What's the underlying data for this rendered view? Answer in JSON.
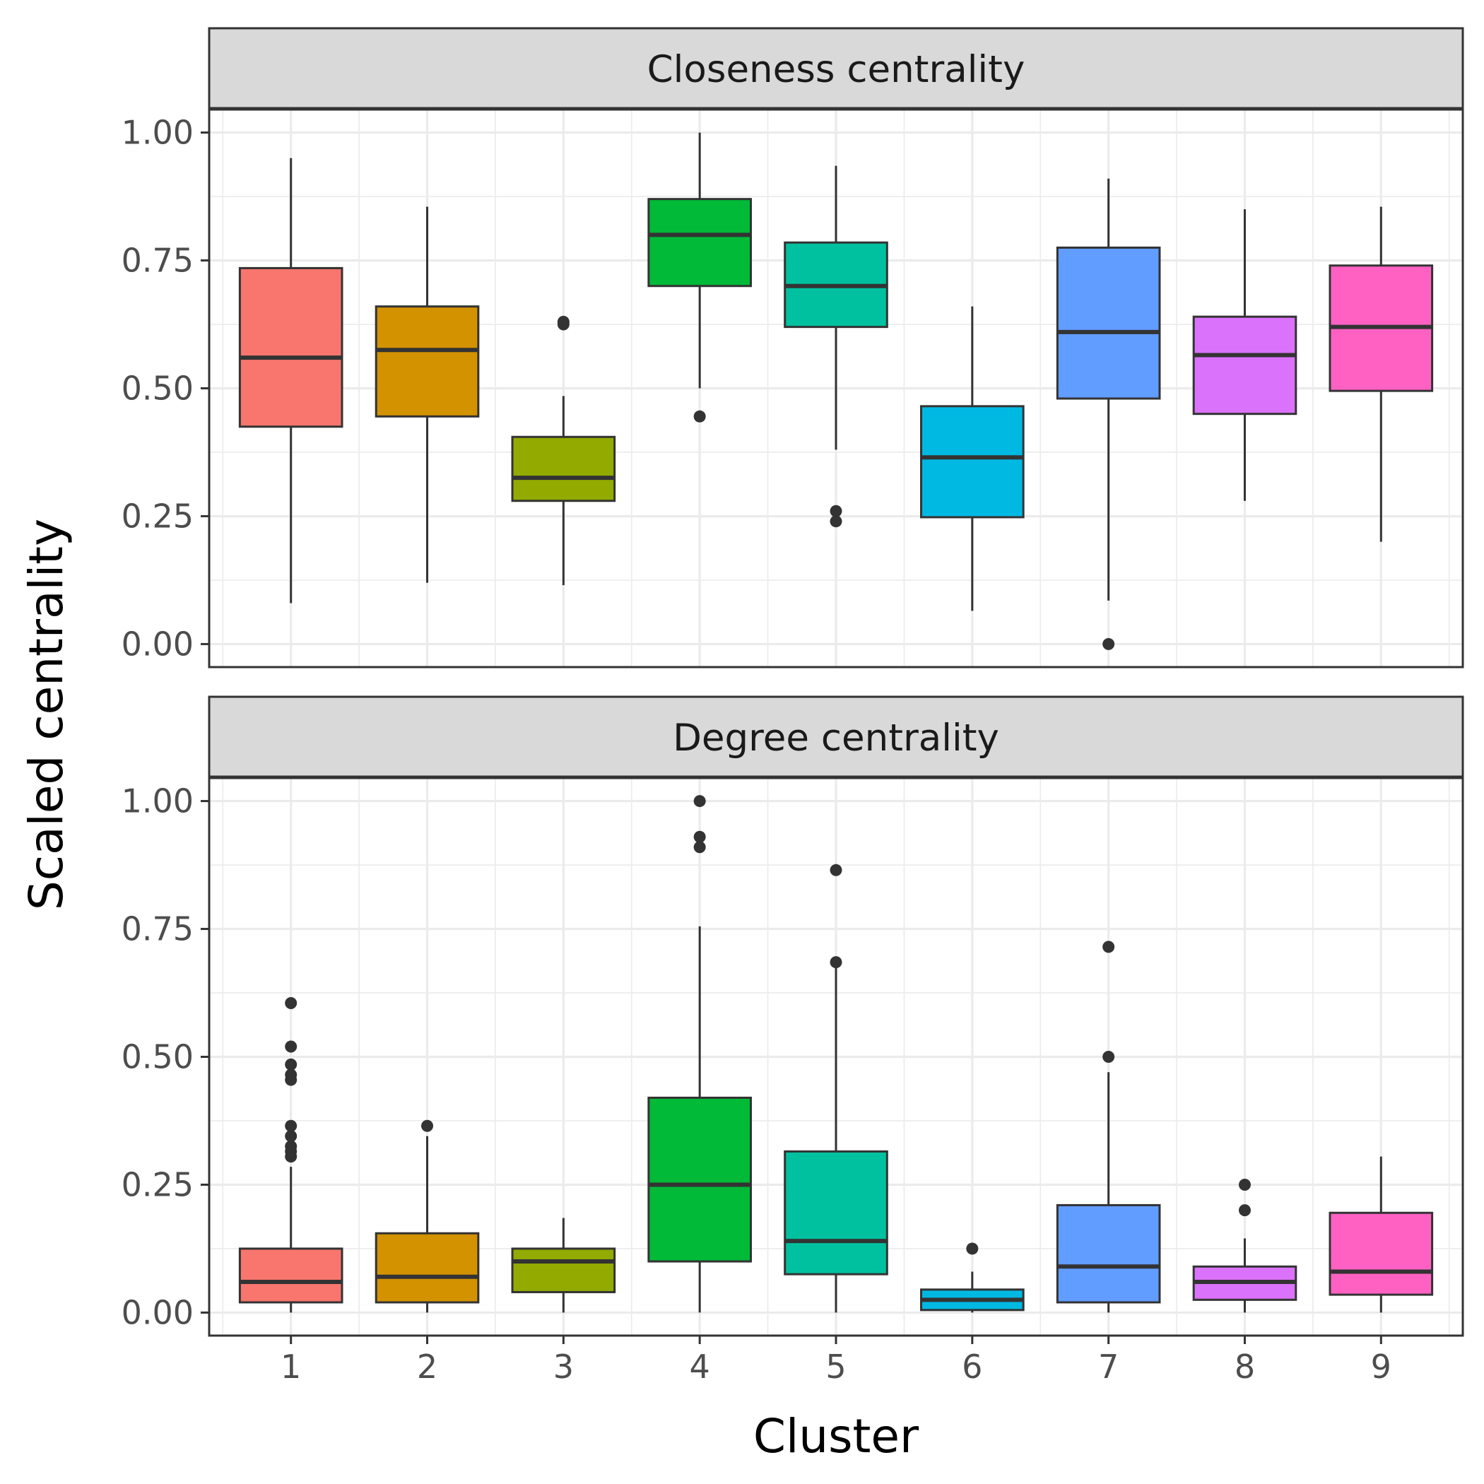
{
  "chart_data": {
    "type": "boxplot",
    "xlabel": "Cluster",
    "ylabel": "Scaled centrality",
    "ylim": [
      -0.045,
      1.045
    ],
    "yticks": [
      "0.00",
      "0.25",
      "0.50",
      "0.75",
      "1.00"
    ],
    "categories": [
      "1",
      "2",
      "3",
      "4",
      "5",
      "6",
      "7",
      "8",
      "9"
    ],
    "colors": [
      "#F8766D",
      "#D39200",
      "#93AA00",
      "#00BA38",
      "#00C19F",
      "#00B9E3",
      "#619CFF",
      "#DB72FB",
      "#FF61C3"
    ],
    "grid": true,
    "facets": [
      {
        "label": "Closeness centrality",
        "boxes": [
          {
            "cluster": "1",
            "whisker_low": 0.08,
            "q1": 0.425,
            "median": 0.56,
            "q3": 0.735,
            "whisker_high": 0.95,
            "outliers": []
          },
          {
            "cluster": "2",
            "whisker_low": 0.12,
            "q1": 0.445,
            "median": 0.575,
            "q3": 0.66,
            "whisker_high": 0.855,
            "outliers": []
          },
          {
            "cluster": "3",
            "whisker_low": 0.115,
            "q1": 0.28,
            "median": 0.325,
            "q3": 0.405,
            "whisker_high": 0.485,
            "outliers": [
              0.625,
              0.63
            ]
          },
          {
            "cluster": "4",
            "whisker_low": 0.5,
            "q1": 0.7,
            "median": 0.8,
            "q3": 0.87,
            "whisker_high": 1.0,
            "outliers": [
              0.445
            ]
          },
          {
            "cluster": "5",
            "whisker_low": 0.38,
            "q1": 0.62,
            "median": 0.7,
            "q3": 0.785,
            "whisker_high": 0.935,
            "outliers": [
              0.24,
              0.26
            ]
          },
          {
            "cluster": "6",
            "whisker_low": 0.065,
            "q1": 0.248,
            "median": 0.365,
            "q3": 0.465,
            "whisker_high": 0.66,
            "outliers": []
          },
          {
            "cluster": "7",
            "whisker_low": 0.085,
            "q1": 0.48,
            "median": 0.61,
            "q3": 0.775,
            "whisker_high": 0.91,
            "outliers": [
              0.0
            ]
          },
          {
            "cluster": "8",
            "whisker_low": 0.28,
            "q1": 0.45,
            "median": 0.565,
            "q3": 0.64,
            "whisker_high": 0.85,
            "outliers": []
          },
          {
            "cluster": "9",
            "whisker_low": 0.2,
            "q1": 0.495,
            "median": 0.62,
            "q3": 0.74,
            "whisker_high": 0.855,
            "outliers": []
          }
        ]
      },
      {
        "label": "Degree centrality",
        "boxes": [
          {
            "cluster": "1",
            "whisker_low": 0.0,
            "q1": 0.02,
            "median": 0.06,
            "q3": 0.125,
            "whisker_high": 0.285,
            "outliers": [
              0.305,
              0.315,
              0.325,
              0.345,
              0.365,
              0.455,
              0.465,
              0.485,
              0.52,
              0.605
            ]
          },
          {
            "cluster": "2",
            "whisker_low": 0.0,
            "q1": 0.02,
            "median": 0.07,
            "q3": 0.155,
            "whisker_high": 0.345,
            "outliers": [
              0.365
            ]
          },
          {
            "cluster": "3",
            "whisker_low": 0.0,
            "q1": 0.04,
            "median": 0.1,
            "q3": 0.125,
            "whisker_high": 0.185,
            "outliers": []
          },
          {
            "cluster": "4",
            "whisker_low": 0.0,
            "q1": 0.1,
            "median": 0.25,
            "q3": 0.42,
            "whisker_high": 0.755,
            "outliers": [
              0.91,
              0.93,
              1.0
            ]
          },
          {
            "cluster": "5",
            "whisker_low": 0.0,
            "q1": 0.075,
            "median": 0.14,
            "q3": 0.315,
            "whisker_high": 0.675,
            "outliers": [
              0.685,
              0.865
            ]
          },
          {
            "cluster": "6",
            "whisker_low": 0.0,
            "q1": 0.005,
            "median": 0.025,
            "q3": 0.045,
            "whisker_high": 0.08,
            "outliers": [
              0.125
            ]
          },
          {
            "cluster": "7",
            "whisker_low": 0.0,
            "q1": 0.02,
            "median": 0.09,
            "q3": 0.21,
            "whisker_high": 0.47,
            "outliers": [
              0.5,
              0.715
            ]
          },
          {
            "cluster": "8",
            "whisker_low": 0.0,
            "q1": 0.025,
            "median": 0.06,
            "q3": 0.09,
            "whisker_high": 0.145,
            "outliers": [
              0.2,
              0.25
            ]
          },
          {
            "cluster": "9",
            "whisker_low": 0.0,
            "q1": 0.035,
            "median": 0.08,
            "q3": 0.195,
            "whisker_high": 0.305,
            "outliers": []
          }
        ]
      }
    ]
  }
}
